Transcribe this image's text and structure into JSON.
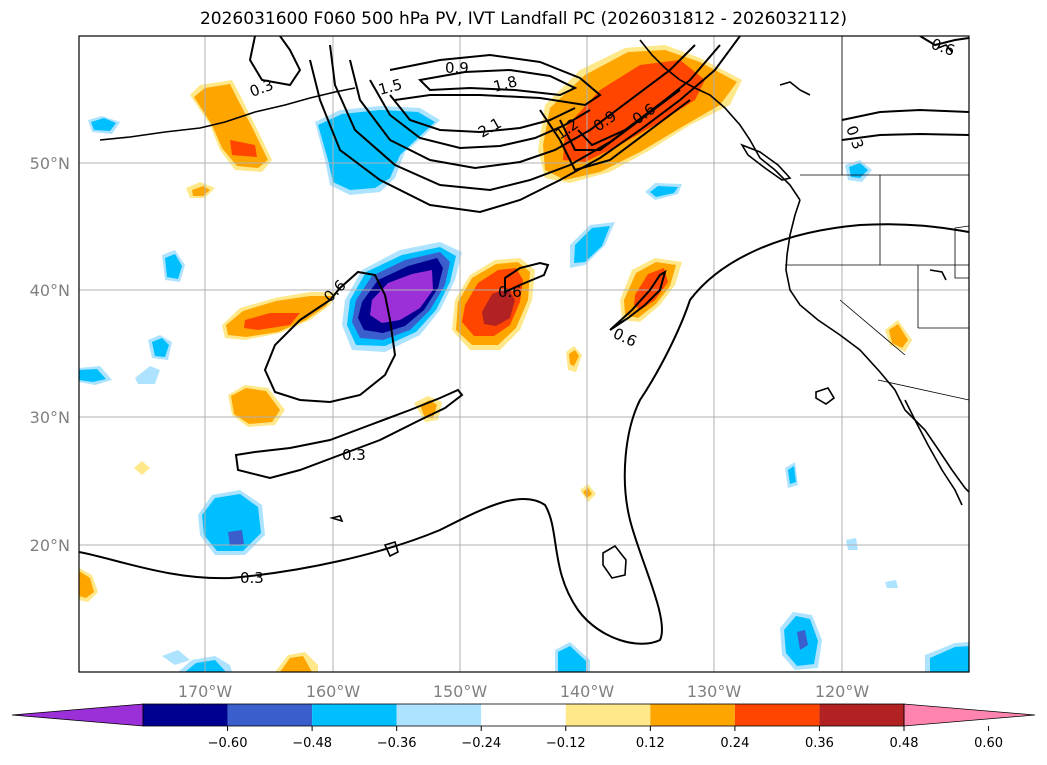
{
  "title": "2026031600 F060 500 hPa PV, IVT Landfall PC (2026031812 - 2026032112)",
  "lat_labels": [
    "50°N",
    "40°N",
    "30°N",
    "20°N"
  ],
  "lon_labels": [
    "170°W",
    "160°W",
    "150°W",
    "140°W",
    "130°W",
    "120°W"
  ],
  "contour_labels": [
    "0.3",
    "0.9",
    "1.5",
    "1.8",
    "2.1",
    "1.2",
    "0.9",
    "0.6",
    "0.3",
    "0.6",
    "0.6",
    "0.6",
    "0.3",
    "0.3",
    "0.6"
  ],
  "colorbar": {
    "ticks": [
      "−0.60",
      "−0.48",
      "−0.36",
      "−0.24",
      "−0.12",
      "0.12",
      "0.24",
      "0.36",
      "0.48",
      "0.60"
    ],
    "colors": [
      "#9b30d9",
      "#000090",
      "#3a5fcd",
      "#00bfff",
      "#aee3ff",
      "#ffffff",
      "#ffe88a",
      "#ffa500",
      "#ff4500",
      "#b22222",
      "#ff85b0"
    ]
  }
}
